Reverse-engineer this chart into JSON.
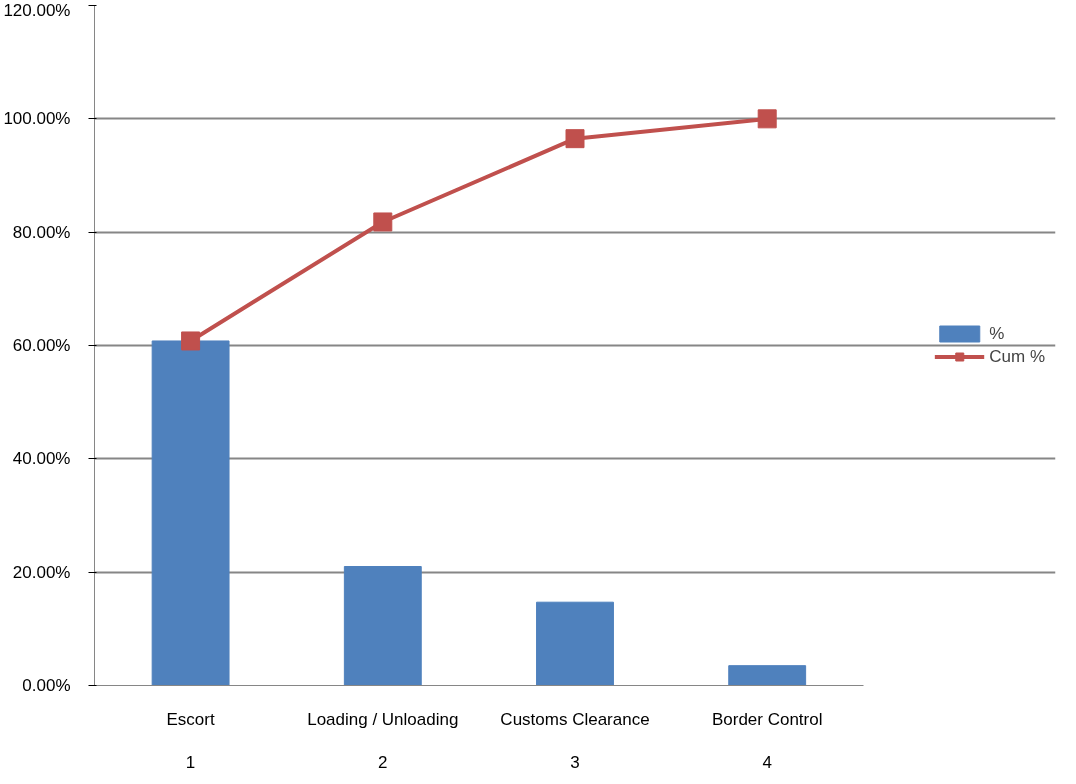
{
  "chart_data": {
    "type": "bar",
    "categories": [
      "Escort",
      "Loading / Unloading",
      "Customs Clearance",
      "Border Control"
    ],
    "annotations": [
      "1",
      "2",
      "3",
      "4"
    ],
    "series": [
      {
        "name": "%",
        "color": "#4f81bd",
        "values": [
          60.8,
          21.0,
          14.7,
          3.5
        ]
      },
      {
        "name": "Cum %",
        "type": "line",
        "color": "#c0504d",
        "marker": "square",
        "values": [
          60.8,
          81.8,
          96.5,
          100
        ]
      }
    ],
    "ylim": [
      0,
      120
    ],
    "yticks": [
      {
        "value": 0,
        "label": "0.00%"
      },
      {
        "value": 20,
        "label": "20.00%"
      },
      {
        "value": 40,
        "label": "40.00%"
      },
      {
        "value": 60,
        "label": "60.00%"
      },
      {
        "value": 80,
        "label": "80.00%"
      },
      {
        "value": 100,
        "label": "100.00%"
      },
      {
        "value": 120,
        "label": "120.00%"
      }
    ],
    "grid": "y",
    "legend": "right"
  }
}
